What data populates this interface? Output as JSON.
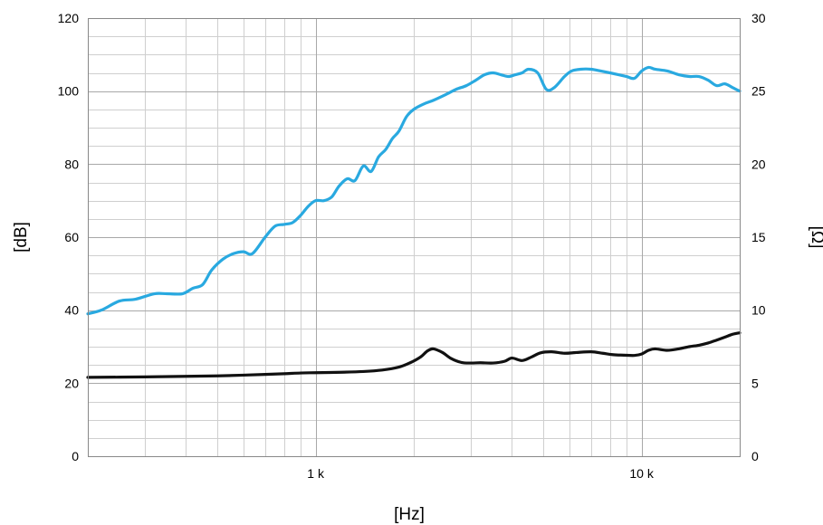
{
  "chart_data": {
    "type": "line",
    "title": "",
    "xlabel": "[Hz]",
    "ylabel_left": "[dB]",
    "ylabel_right": "[Ω]",
    "x_scale": "log",
    "xlim": [
      200,
      20000
    ],
    "ylim_left": [
      0,
      120
    ],
    "ylim_right": [
      0,
      30
    ],
    "grid": true,
    "legend": "none",
    "x_tick_values": [
      1000,
      10000
    ],
    "x_tick_labels": [
      "1 k",
      "10 k"
    ],
    "y_left_ticks": [
      "0",
      "20",
      "40",
      "60",
      "80",
      "100",
      "120"
    ],
    "y_right_ticks": [
      "0",
      "5",
      "10",
      "15",
      "20",
      "25",
      "30"
    ],
    "series": [
      {
        "axis": "left",
        "color": "#29a9e0",
        "x": [
          200,
          220,
          250,
          280,
          320,
          350,
          390,
          420,
          450,
          480,
          520,
          560,
          600,
          640,
          700,
          750,
          800,
          850,
          900,
          950,
          1000,
          1060,
          1120,
          1180,
          1250,
          1320,
          1400,
          1480,
          1560,
          1640,
          1720,
          1800,
          1900,
          2000,
          2150,
          2300,
          2500,
          2700,
          2900,
          3100,
          3300,
          3500,
          3700,
          3900,
          4100,
          4300,
          4500,
          4800,
          5100,
          5400,
          5800,
          6100,
          6500,
          7000,
          7500,
          8000,
          8500,
          9000,
          9500,
          10000,
          10500,
          11000,
          12000,
          13000,
          14000,
          15000,
          16000,
          17000,
          18000,
          19000,
          20000
        ],
        "values": [
          39,
          40,
          42.5,
          43,
          44.5,
          44.5,
          44.5,
          46,
          47,
          51,
          54,
          55.5,
          56,
          55.5,
          60,
          63,
          63.5,
          64,
          66,
          68.5,
          70,
          70,
          71,
          74,
          76,
          75.5,
          79.5,
          78,
          82,
          84,
          87,
          89,
          93,
          95,
          96.5,
          97.5,
          99,
          100.5,
          101.5,
          103,
          104.5,
          105,
          104.5,
          104,
          104.5,
          105,
          106,
          105,
          100.5,
          101,
          104,
          105.5,
          106,
          106,
          105.5,
          105,
          104.5,
          104,
          103.5,
          105.5,
          106.5,
          106,
          105.5,
          104.5,
          104,
          104,
          103,
          101.5,
          102,
          101,
          100
        ]
      },
      {
        "axis": "right",
        "color": "#111111",
        "x": [
          200,
          300,
          400,
          500,
          600,
          700,
          800,
          900,
          1000,
          1200,
          1400,
          1600,
          1800,
          1950,
          2100,
          2200,
          2300,
          2450,
          2600,
          2800,
          3000,
          3200,
          3500,
          3800,
          4000,
          4300,
          4600,
          4900,
          5300,
          5800,
          6300,
          7000,
          7600,
          8200,
          8800,
          9500,
          10000,
          10500,
          11000,
          12000,
          13000,
          14000,
          15000,
          16000,
          17000,
          18000,
          19000,
          20000
        ],
        "values": [
          5.4,
          5.43,
          5.47,
          5.5,
          5.55,
          5.6,
          5.65,
          5.7,
          5.72,
          5.75,
          5.8,
          5.9,
          6.1,
          6.4,
          6.8,
          7.2,
          7.35,
          7.1,
          6.7,
          6.42,
          6.38,
          6.4,
          6.38,
          6.5,
          6.72,
          6.55,
          6.8,
          7.08,
          7.15,
          7.05,
          7.1,
          7.15,
          7.05,
          6.95,
          6.92,
          6.9,
          7.0,
          7.25,
          7.35,
          7.25,
          7.35,
          7.5,
          7.6,
          7.75,
          7.95,
          8.15,
          8.35,
          8.45
        ]
      }
    ]
  }
}
